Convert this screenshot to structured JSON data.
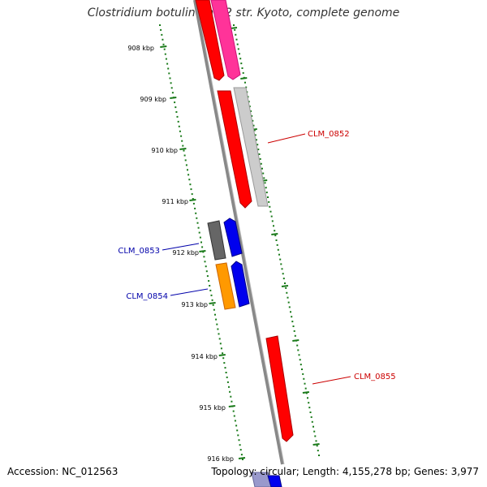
{
  "title": "Clostridium botulinum A2 str. Kyoto, complete genome",
  "accession": "Accession: NC_012563",
  "summary": "Topology: circular; Length: 4,155,278 bp; Genes: 3,977",
  "ticks": [
    "908 kbp",
    "909 kbp",
    "910 kbp",
    "911 kbp",
    "912 kbp",
    "913 kbp",
    "914 kbp",
    "915 kbp",
    "916 kbp"
  ],
  "gene_labels": [
    {
      "name": "CLM_0852",
      "color": "#cc0000"
    },
    {
      "name": "CLM_0853",
      "color": "#0000aa"
    },
    {
      "name": "CLM_0854",
      "color": "#0000aa"
    },
    {
      "name": "CLM_0855",
      "color": "#cc0000"
    }
  ],
  "colors": {
    "backbone": "#888888",
    "ticks": "#1a7a1a",
    "red": "#ff0000",
    "pink": "#ff3399",
    "grey": "#bbbbbb",
    "dark_grey": "#666666",
    "blue": "#0000ee",
    "orange": "#ff9900",
    "lavender": "#9999cc"
  }
}
